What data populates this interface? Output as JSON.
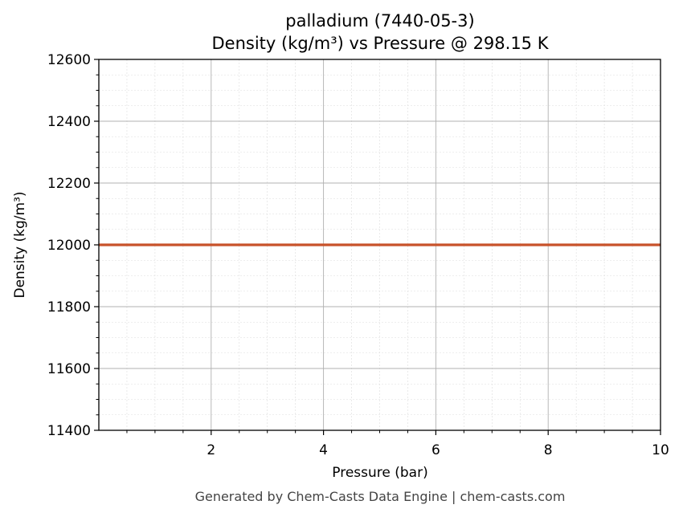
{
  "chart_data": {
    "type": "line",
    "title_line1": "palladium (7440-05-3)",
    "title_line2": "Density (kg/m³) vs Pressure @ 298.15 K",
    "xlabel": "Pressure (bar)",
    "ylabel": "Density (kg/m³)",
    "xlim": [
      0,
      10
    ],
    "ylim": [
      11400,
      12600
    ],
    "xticks": [
      2,
      4,
      6,
      8,
      10
    ],
    "yticks": [
      11400,
      11600,
      11800,
      12000,
      12200,
      12400,
      12600
    ],
    "grid": true,
    "series": [
      {
        "color": "#c8522a",
        "x": [
          0,
          1,
          2,
          3,
          4,
          5,
          6,
          7,
          8,
          9,
          10
        ],
        "y": [
          12000,
          12000,
          12000,
          12000,
          12000,
          12000,
          12000,
          12000,
          12000,
          12000,
          12000
        ]
      }
    ]
  },
  "footer": "Generated by Chem-Casts Data Engine | chem-casts.com"
}
